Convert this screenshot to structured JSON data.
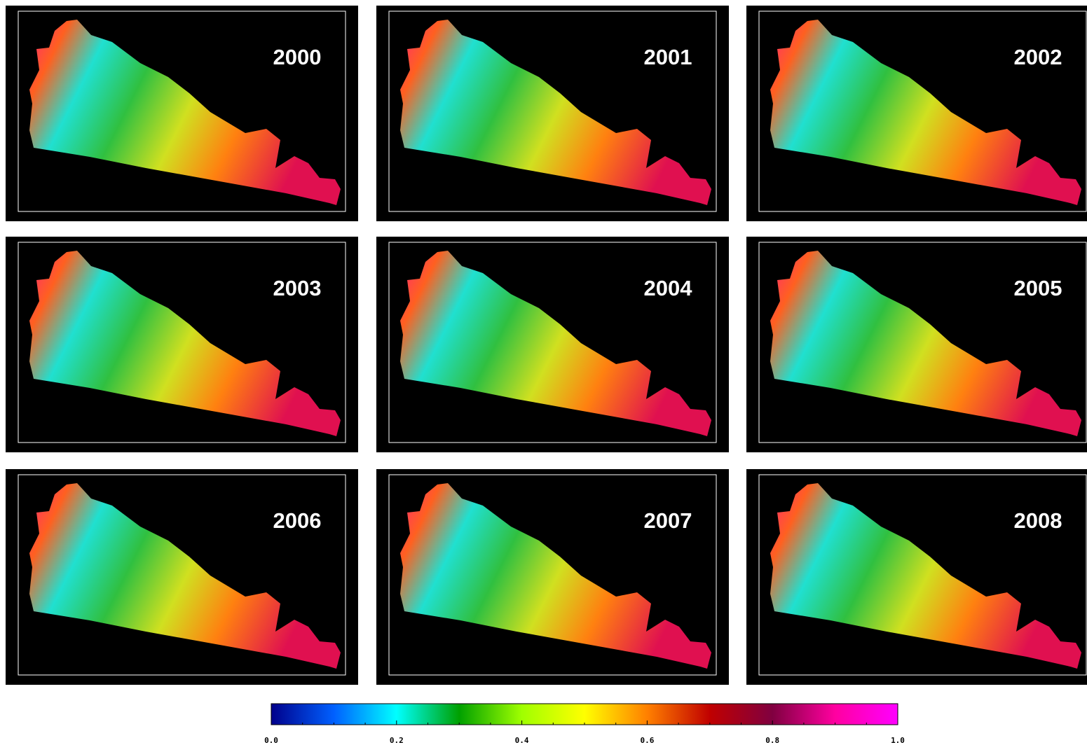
{
  "panels": [
    {
      "label": "2000"
    },
    {
      "label": "2001"
    },
    {
      "label": "2002"
    },
    {
      "label": "2003"
    },
    {
      "label": "2004"
    },
    {
      "label": "2005"
    },
    {
      "label": "2006"
    },
    {
      "label": "2007"
    },
    {
      "label": "2008"
    }
  ],
  "colorbar": {
    "range": [
      0,
      1
    ],
    "colors": [
      "#00008b",
      "#0060ff",
      "#00ffff",
      "#00a000",
      "#a0ff00",
      "#ffff00",
      "#ff8000",
      "#c00000",
      "#800040",
      "#ff00a0",
      "#ff00ff"
    ],
    "ticks": [
      {
        "value": 0,
        "label": "0.0"
      },
      {
        "value": 0.2,
        "label": "0.2"
      },
      {
        "value": 0.4,
        "label": "0.4"
      },
      {
        "value": 0.6,
        "label": "0.6"
      },
      {
        "value": 0.8,
        "label": "0.8"
      },
      {
        "value": 1,
        "label": "1.0"
      }
    ]
  }
}
